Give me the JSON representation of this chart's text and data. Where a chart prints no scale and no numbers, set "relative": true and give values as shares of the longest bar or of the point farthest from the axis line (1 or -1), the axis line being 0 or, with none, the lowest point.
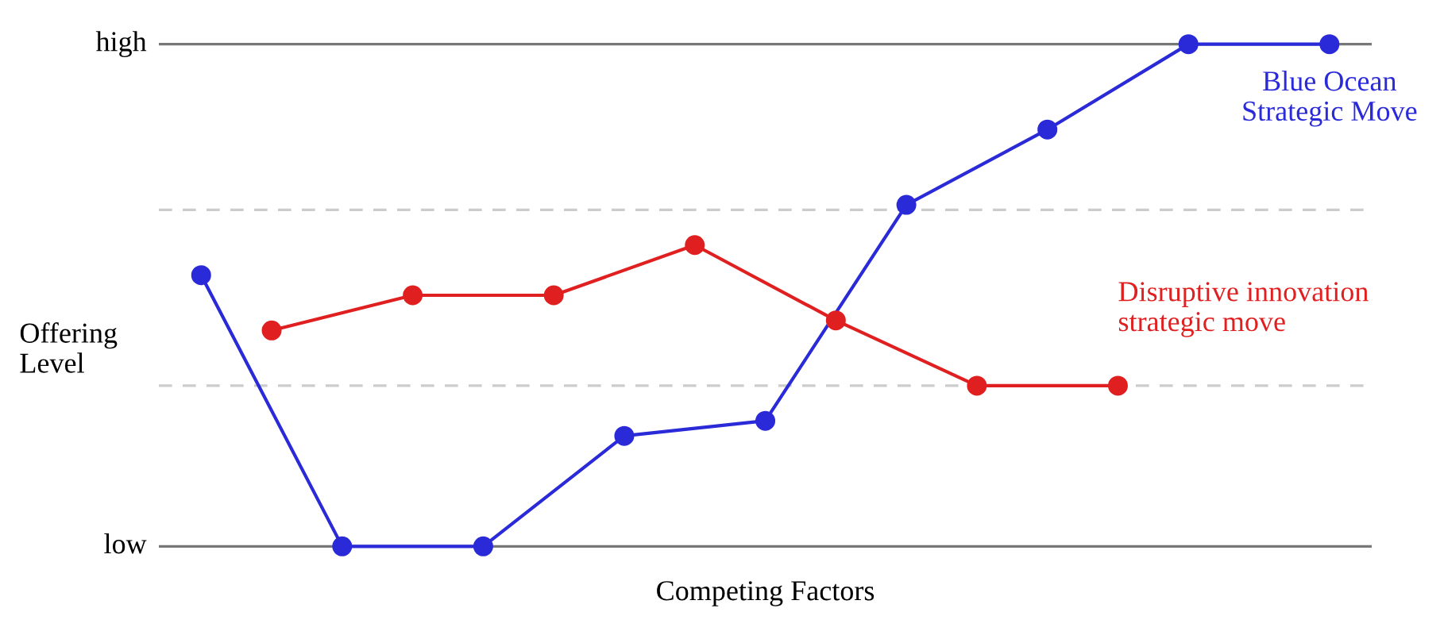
{
  "chart_data": {
    "type": "line",
    "xlabel": "Competing Factors",
    "ylabel": "Offering\nLevel",
    "relative": true,
    "categories": [
      null,
      null,
      null,
      null,
      null,
      null,
      null,
      null,
      null,
      null,
      null,
      null,
      null,
      null,
      null,
      null,
      null
    ],
    "ref_lines": [
      {
        "axis": "y",
        "value": 0,
        "label": "low",
        "color": "#777777",
        "line_style": "solid"
      },
      {
        "axis": "y",
        "value": 0.32,
        "color": "#cccccc",
        "line_style": "dashed"
      },
      {
        "axis": "y",
        "value": 0.67,
        "color": "#cccccc",
        "line_style": "dashed"
      },
      {
        "axis": "y",
        "value": 1,
        "label": "high",
        "color": "#777777",
        "line_style": "solid"
      }
    ],
    "tick_labels": false,
    "legend": false,
    "marker": "circle",
    "line_style": "solid",
    "series": [
      {
        "name": "Blue Ocean\nStrategic Move",
        "color": "#2a2ad8",
        "values": [
          0.54,
          null,
          0,
          null,
          0,
          null,
          0.22,
          null,
          0.25,
          null,
          0.68,
          null,
          0.83,
          null,
          1,
          null,
          1
        ]
      },
      {
        "name": "Disruptive innovation\nstrategic move",
        "color": "#e02020",
        "values": [
          null,
          0.43,
          null,
          0.5,
          null,
          0.5,
          null,
          0.6,
          null,
          0.45,
          null,
          0.32,
          null,
          0.32,
          null,
          null,
          null
        ]
      }
    ]
  }
}
